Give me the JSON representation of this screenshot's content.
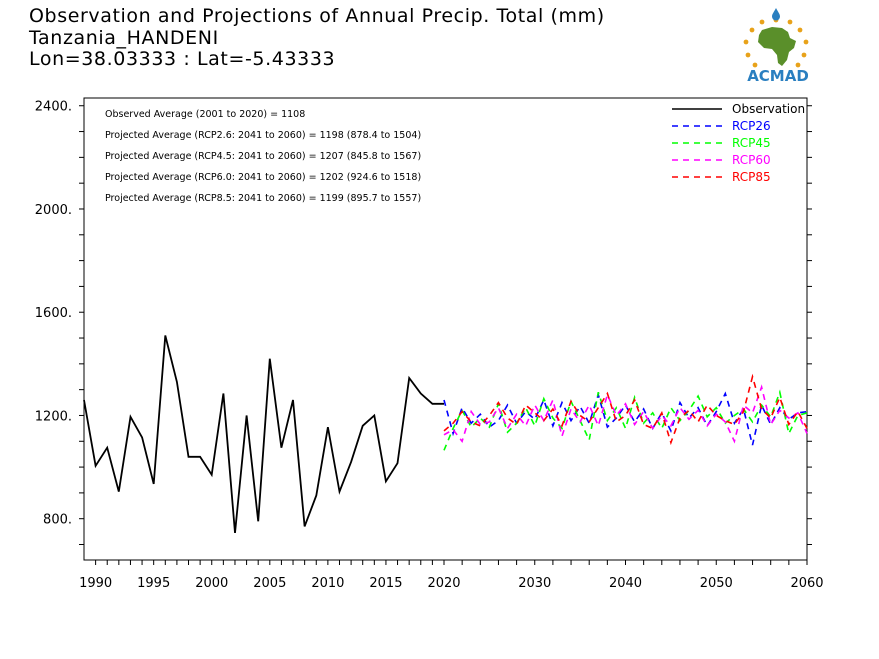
{
  "title": {
    "line1": "Observation and Projections of Annual Precip. Total (mm)",
    "line2": "Tanzania_HANDENI",
    "line3": "Lon=38.03333 : Lat=-5.43333"
  },
  "logo": {
    "text": "ACMAD",
    "colors": {
      "africa": "#5a8f2a",
      "rays": "#e8a21a",
      "drop": "#2a7fc0",
      "text": "#2a7fc0"
    }
  },
  "annotations": [
    "Observed Average (2001 to 2020) = 1108",
    "Projected Average (RCP2.6: 2041 to 2060) = 1198 (878.4 to 1504)",
    "Projected Average (RCP4.5: 2041 to 2060) = 1207 (845.8 to 1567)",
    "Projected Average (RCP6.0: 2041 to 2060) = 1202 (924.6 to 1518)",
    "Projected Average (RCP8.5: 2041 to 2060) = 1199 (895.7 to 1557)"
  ],
  "chart_data": {
    "type": "line",
    "xlim": [
      1989,
      2060
    ],
    "ylim": [
      640,
      2430
    ],
    "xticks": [
      1990,
      1995,
      2000,
      2005,
      2010,
      2015,
      2020,
      2030,
      2040,
      2050,
      2060
    ],
    "yticks": [
      800,
      1200,
      1600,
      2000,
      2400
    ],
    "ytick_labels": [
      "800.",
      "1200.",
      "1600.",
      "2000.",
      "2400."
    ],
    "legend_position": "top-right",
    "series": [
      {
        "name": "Observation",
        "color": "#000000",
        "style": "solid",
        "x": [
          1989,
          1990,
          1991,
          1992,
          1993,
          1994,
          1995,
          1996,
          1997,
          1998,
          1999,
          2000,
          2001,
          2002,
          2003,
          2004,
          2005,
          2006,
          2007,
          2008,
          2009,
          2010,
          2011,
          2012,
          2013,
          2014,
          2015,
          2016,
          2017,
          2018,
          2019,
          2020
        ],
        "values": [
          1260,
          1005,
          1075,
          905,
          1195,
          1115,
          935,
          1510,
          1330,
          1040,
          1040,
          970,
          1285,
          745,
          1200,
          790,
          1420,
          1075,
          1260,
          770,
          890,
          1155,
          905,
          1020,
          1160,
          1200,
          945,
          1015,
          1345,
          1285,
          1245,
          1245
        ]
      },
      {
        "name": "RCP26",
        "color": "#0000ff",
        "style": "dashed",
        "x": [
          2020,
          2021,
          2022,
          2023,
          2024,
          2025,
          2026,
          2027,
          2028,
          2029,
          2030,
          2031,
          2032,
          2033,
          2034,
          2035,
          2036,
          2037,
          2038,
          2039,
          2040,
          2041,
          2042,
          2043,
          2044,
          2045,
          2046,
          2047,
          2048,
          2049,
          2050,
          2051,
          2052,
          2053,
          2054,
          2055,
          2056,
          2057,
          2058,
          2059,
          2060
        ],
        "values": [
          1260,
          1130,
          1230,
          1170,
          1205,
          1155,
          1180,
          1240,
          1170,
          1215,
          1185,
          1260,
          1160,
          1250,
          1180,
          1235,
          1170,
          1280,
          1155,
          1190,
          1240,
          1175,
          1225,
          1150,
          1210,
          1140,
          1250,
          1190,
          1230,
          1160,
          1215,
          1285,
          1170,
          1225,
          1085,
          1240,
          1165,
          1230,
          1185,
          1210,
          1215
        ]
      },
      {
        "name": "RCP45",
        "color": "#00ff00",
        "style": "dashed",
        "x": [
          2020,
          2021,
          2022,
          2023,
          2024,
          2025,
          2026,
          2027,
          2028,
          2029,
          2030,
          2031,
          2032,
          2033,
          2034,
          2035,
          2036,
          2037,
          2038,
          2039,
          2040,
          2041,
          2042,
          2043,
          2044,
          2045,
          2046,
          2047,
          2048,
          2049,
          2050,
          2051,
          2052,
          2053,
          2054,
          2055,
          2056,
          2057,
          2058,
          2059,
          2060
        ],
        "values": [
          1065,
          1150,
          1220,
          1155,
          1190,
          1155,
          1245,
          1135,
          1170,
          1230,
          1160,
          1265,
          1190,
          1150,
          1255,
          1180,
          1105,
          1290,
          1180,
          1230,
          1150,
          1270,
          1170,
          1210,
          1150,
          1230,
          1180,
          1220,
          1275,
          1195,
          1230,
          1170,
          1200,
          1225,
          1175,
          1240,
          1195,
          1290,
          1130,
          1200,
          1210
        ]
      },
      {
        "name": "RCP60",
        "color": "#ff00ff",
        "style": "dashed",
        "x": [
          2020,
          2021,
          2022,
          2023,
          2024,
          2025,
          2026,
          2027,
          2028,
          2029,
          2030,
          2031,
          2032,
          2033,
          2034,
          2035,
          2036,
          2037,
          2038,
          2039,
          2040,
          2041,
          2042,
          2043,
          2044,
          2045,
          2046,
          2047,
          2048,
          2049,
          2050,
          2051,
          2052,
          2053,
          2054,
          2055,
          2056,
          2057,
          2058,
          2059,
          2060
        ],
        "values": [
          1125,
          1145,
          1100,
          1215,
          1165,
          1175,
          1230,
          1150,
          1205,
          1160,
          1240,
          1180,
          1260,
          1120,
          1225,
          1175,
          1240,
          1160,
          1280,
          1200,
          1245,
          1165,
          1215,
          1150,
          1200,
          1160,
          1230,
          1185,
          1220,
          1160,
          1205,
          1175,
          1100,
          1240,
          1210,
          1310,
          1165,
          1220,
          1190,
          1210,
          1130
        ]
      },
      {
        "name": "RCP85",
        "color": "#ff0000",
        "style": "dashed",
        "x": [
          2020,
          2021,
          2022,
          2023,
          2024,
          2025,
          2026,
          2027,
          2028,
          2029,
          2030,
          2031,
          2032,
          2033,
          2034,
          2035,
          2036,
          2037,
          2038,
          2039,
          2040,
          2041,
          2042,
          2043,
          2044,
          2045,
          2046,
          2047,
          2048,
          2049,
          2050,
          2051,
          2052,
          2053,
          2054,
          2055,
          2056,
          2057,
          2058,
          2059,
          2060
        ],
        "values": [
          1140,
          1170,
          1215,
          1175,
          1160,
          1200,
          1250,
          1190,
          1165,
          1240,
          1210,
          1180,
          1225,
          1160,
          1255,
          1200,
          1175,
          1230,
          1285,
          1175,
          1200,
          1260,
          1165,
          1150,
          1210,
          1095,
          1190,
          1220,
          1175,
          1240,
          1200,
          1180,
          1165,
          1215,
          1350,
          1225,
          1190,
          1270,
          1165,
          1215,
          1150
        ]
      }
    ]
  }
}
